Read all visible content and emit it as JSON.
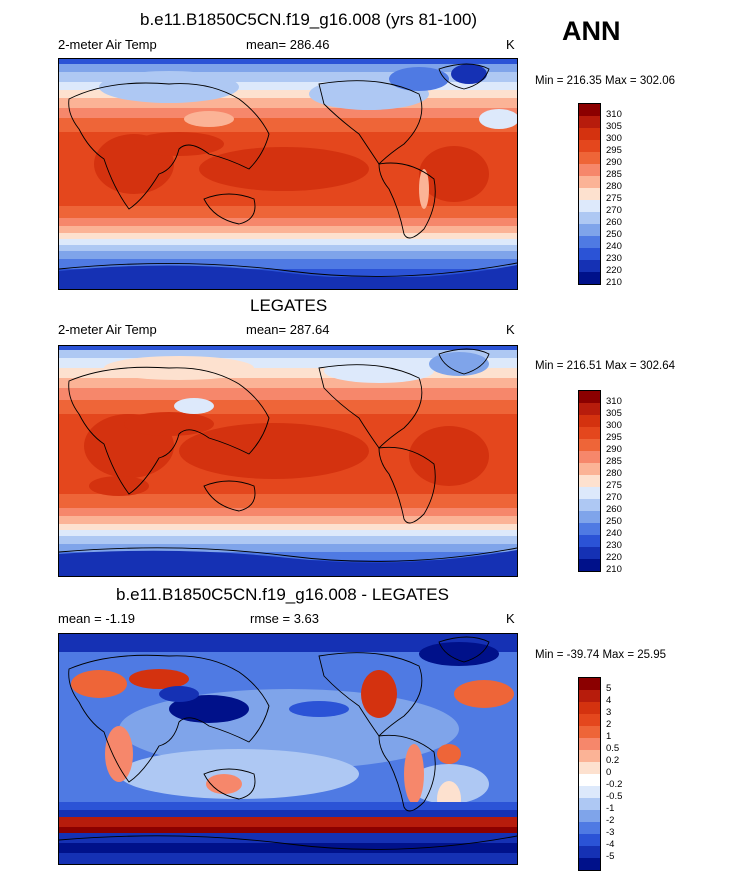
{
  "season": "ANN",
  "panels": [
    {
      "id": "model",
      "title": "b.e11.B1850C5CN.f19_g16.008 (yrs 81-100)",
      "left_label": "2-meter Air Temp",
      "center_label": "mean= 286.46",
      "units": "K",
      "minmax": "Min = 216.35 Max = 302.06",
      "levels": [
        "310",
        "305",
        "300",
        "295",
        "290",
        "285",
        "280",
        "275",
        "270",
        "260",
        "250",
        "240",
        "230",
        "220",
        "210"
      ],
      "colors": [
        "#8b0000",
        "#b71c0c",
        "#d4320f",
        "#e4471d",
        "#ee6538",
        "#f6876b",
        "#fbb396",
        "#fde1cf",
        "#dde9fb",
        "#aec8f3",
        "#7fa4ea",
        "#4f7ae3",
        "#2b53d6",
        "#1531b4",
        "#00118a"
      ]
    },
    {
      "id": "obs",
      "title": "LEGATES",
      "left_label": "2-meter Air Temp",
      "center_label": "mean= 287.64",
      "units": "K",
      "minmax": "Min = 216.51 Max = 302.64",
      "levels": [
        "310",
        "305",
        "300",
        "295",
        "290",
        "285",
        "280",
        "275",
        "270",
        "260",
        "250",
        "240",
        "230",
        "220",
        "210"
      ],
      "colors": [
        "#8b0000",
        "#b71c0c",
        "#d4320f",
        "#e4471d",
        "#ee6538",
        "#f6876b",
        "#fbb396",
        "#fde1cf",
        "#dde9fb",
        "#aec8f3",
        "#7fa4ea",
        "#4f7ae3",
        "#2b53d6",
        "#1531b4",
        "#00118a"
      ]
    },
    {
      "id": "diff",
      "title": "b.e11.B1850C5CN.f19_g16.008 - LEGATES",
      "left_label": "mean =  -1.19",
      "center_label": "rmse =   3.63",
      "units": "K",
      "minmax": "Min = -39.74 Max =  25.95",
      "levels": [
        "5",
        "4",
        "3",
        "2",
        "1",
        "0.5",
        "0.2",
        "0",
        "-0.2",
        "-0.5",
        "-1",
        "-2",
        "-3",
        "-4",
        "-5"
      ],
      "colors": [
        "#8b0000",
        "#b71c0c",
        "#d4320f",
        "#e4471d",
        "#ee6538",
        "#f6876b",
        "#fbb396",
        "#fde1cf",
        "#ffffff",
        "#dde9fb",
        "#aec8f3",
        "#7fa4ea",
        "#4f7ae3",
        "#2b53d6",
        "#1531b4",
        "#00118a"
      ]
    }
  ]
}
